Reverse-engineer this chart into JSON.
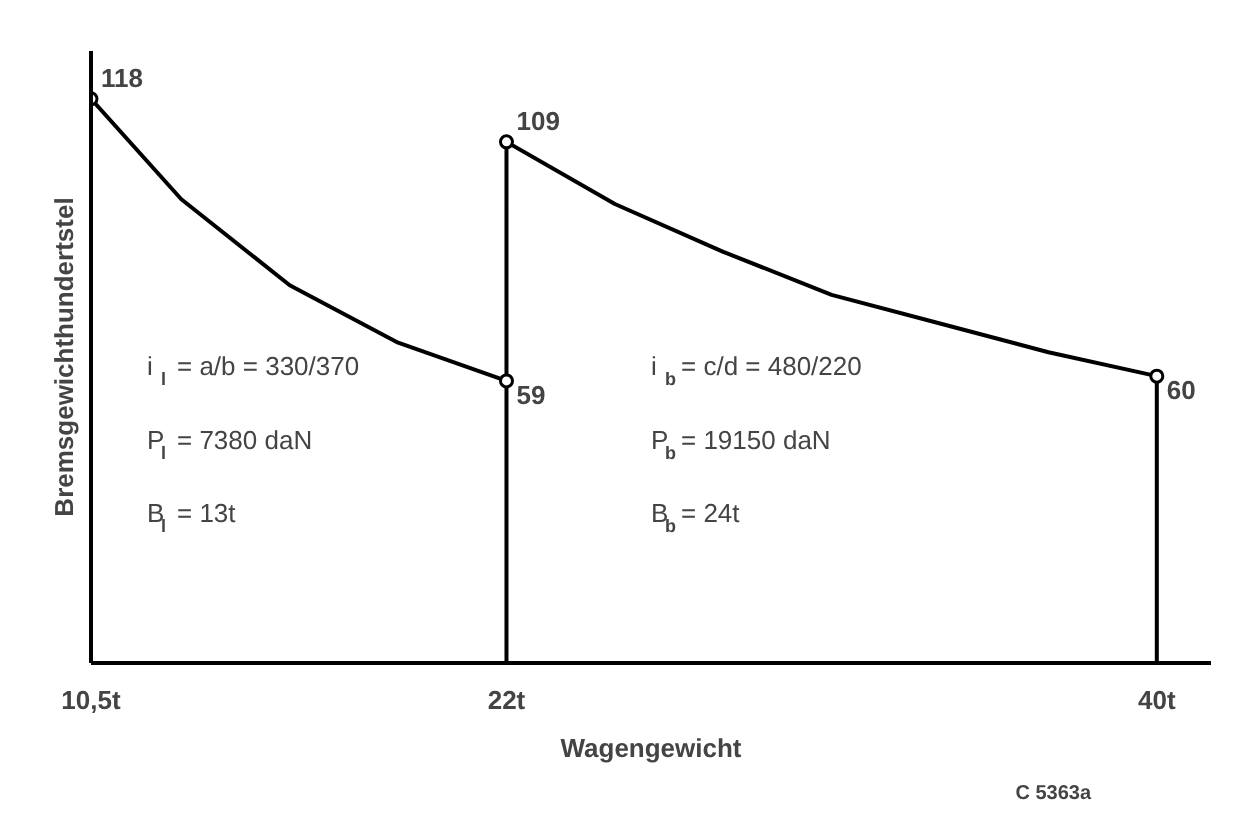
{
  "chart_data": {
    "type": "line",
    "xlabel": "Wagengewicht",
    "ylabel": "Bremsgewichthundertstel",
    "xlim": [
      10.5,
      41.5
    ],
    "ylim": [
      0,
      128
    ],
    "xticks": [
      {
        "value": 10.5,
        "label": "10,5t"
      },
      {
        "value": 22,
        "label": "22t"
      },
      {
        "value": 40,
        "label": "40t"
      }
    ],
    "tick_labels": "x",
    "grid": false,
    "series": [
      {
        "color": "#000000",
        "x": [
          10.5,
          13,
          16,
          19,
          22
        ],
        "values": [
          118,
          97,
          79,
          67,
          59
        ]
      },
      {
        "color": "#000000",
        "x": [
          22,
          22,
          25,
          28,
          31,
          34,
          37,
          40,
          40
        ],
        "values": [
          0,
          109,
          96,
          86,
          77,
          71,
          65,
          60,
          0
        ]
      },
      {
        "type": "scatter",
        "marker": "circle",
        "color": "#000000",
        "x": [
          10.5,
          22,
          22,
          40
        ],
        "values": [
          118,
          59,
          109,
          60
        ],
        "value_labels": [
          "118",
          "59",
          "109",
          "60"
        ]
      }
    ],
    "annotations": [
      "i$_{l}$ = a/b = 330/370",
      "P$_{l}$ = 7380 daN",
      "B$_{l}$ = 13t",
      "i$_{b}$ = c/d = 480/220",
      "P$_{b}$ = 19150 daN",
      "B$_{b}$ = 24t",
      "C 5363a"
    ]
  }
}
